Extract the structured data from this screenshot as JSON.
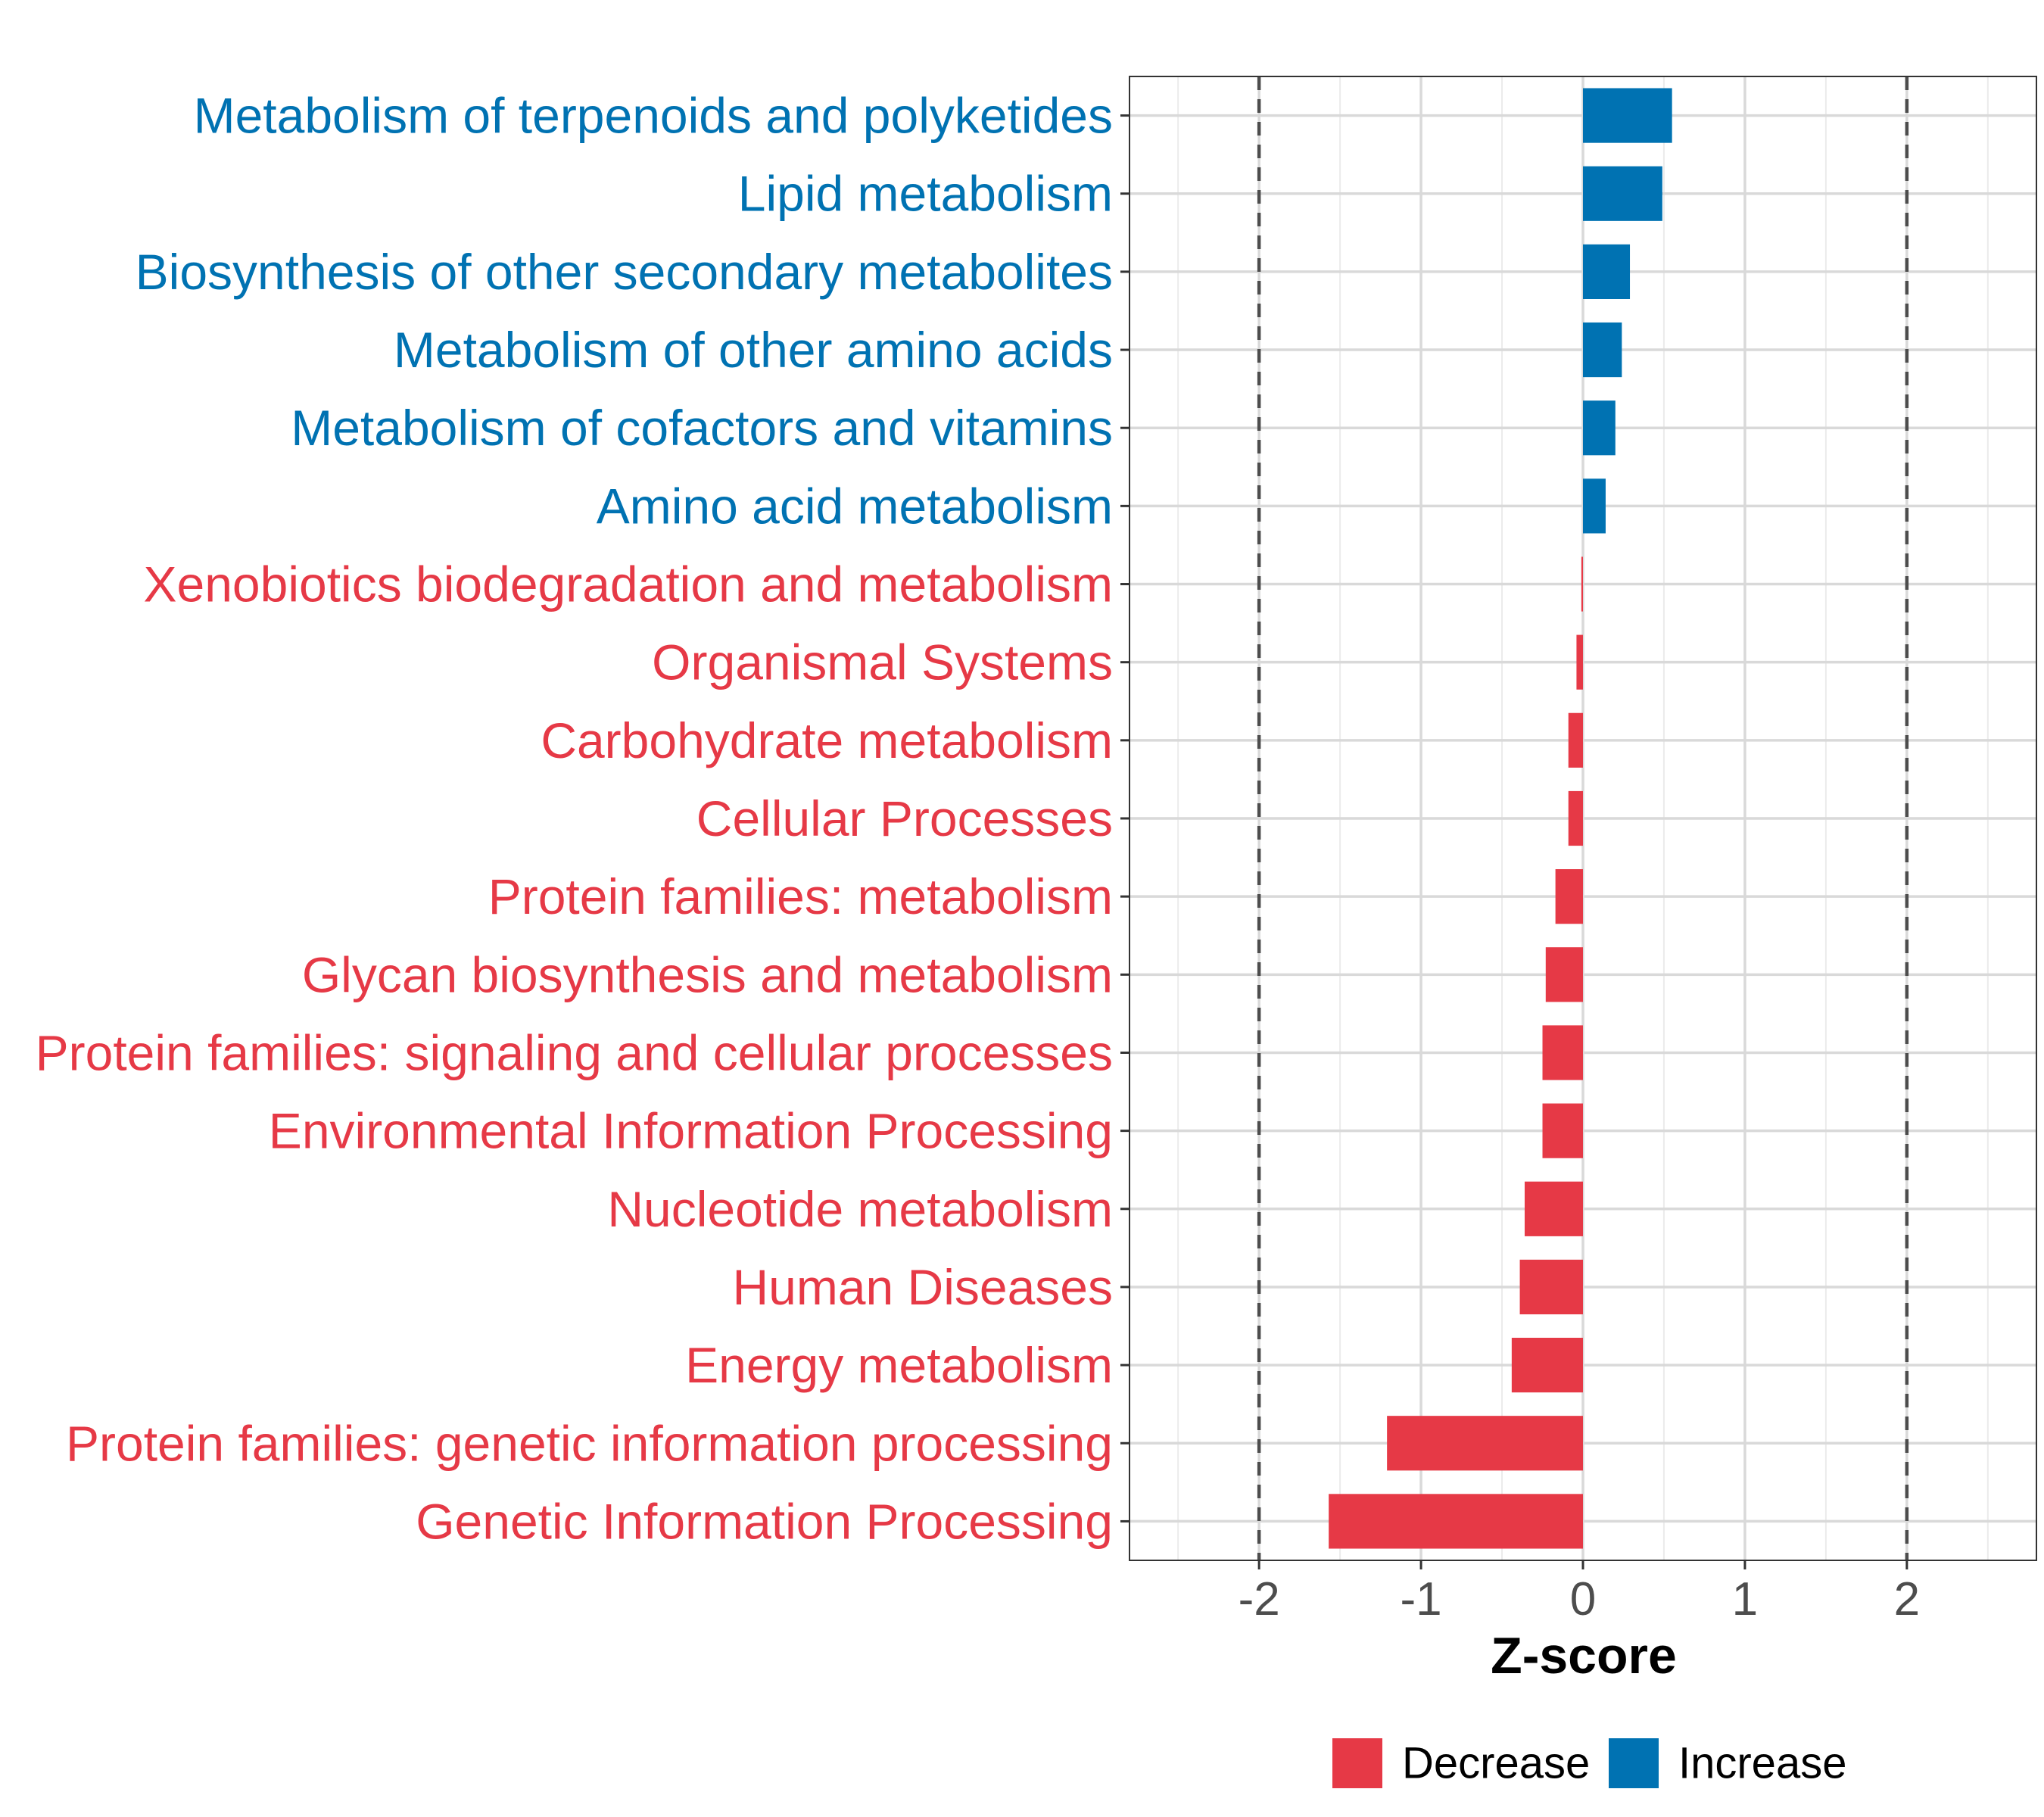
{
  "chart_data": {
    "type": "bar",
    "orientation": "horizontal",
    "xlabel": "Z-score",
    "ylabel": "",
    "xlim": [
      -2.8,
      2.8
    ],
    "x_ticks": [
      -2,
      -1,
      0,
      1,
      2
    ],
    "x_tick_labels": [
      "-2",
      "-1",
      "0",
      "1",
      "2"
    ],
    "reference_lines": [
      -2,
      2
    ],
    "grid": true,
    "legend_position": "bottom",
    "categories": [
      "Metabolism of terpenoids and polyketides",
      "Lipid metabolism",
      "Biosynthesis of other secondary metabolites",
      "Metabolism of other amino acids",
      "Metabolism of cofactors and vitamins",
      "Amino acid metabolism",
      "Xenobiotics biodegradation and metabolism",
      "Organismal Systems",
      "Carbohydrate metabolism",
      "Cellular Processes",
      "Protein families: metabolism",
      "Glycan biosynthesis and metabolism",
      "Protein families: signaling and cellular processes",
      "Environmental Information Processing",
      "Nucleotide metabolism",
      "Human Diseases",
      "Energy metabolism",
      "Protein families: genetic information processing",
      "Genetic Information Processing"
    ],
    "values": [
      0.55,
      0.49,
      0.29,
      0.24,
      0.2,
      0.14,
      -0.01,
      -0.04,
      -0.09,
      -0.09,
      -0.17,
      -0.23,
      -0.25,
      -0.25,
      -0.36,
      -0.39,
      -0.44,
      -1.21,
      -1.57
    ],
    "groups": [
      "Increase",
      "Increase",
      "Increase",
      "Increase",
      "Increase",
      "Increase",
      "Decrease",
      "Decrease",
      "Decrease",
      "Decrease",
      "Decrease",
      "Decrease",
      "Decrease",
      "Decrease",
      "Decrease",
      "Decrease",
      "Decrease",
      "Decrease",
      "Decrease"
    ],
    "legend": [
      {
        "name": "Decrease",
        "color": "#E63946"
      },
      {
        "name": "Increase",
        "color": "#0072B2"
      }
    ],
    "colors": {
      "Decrease": "#E63946",
      "Increase": "#0072B2"
    }
  }
}
